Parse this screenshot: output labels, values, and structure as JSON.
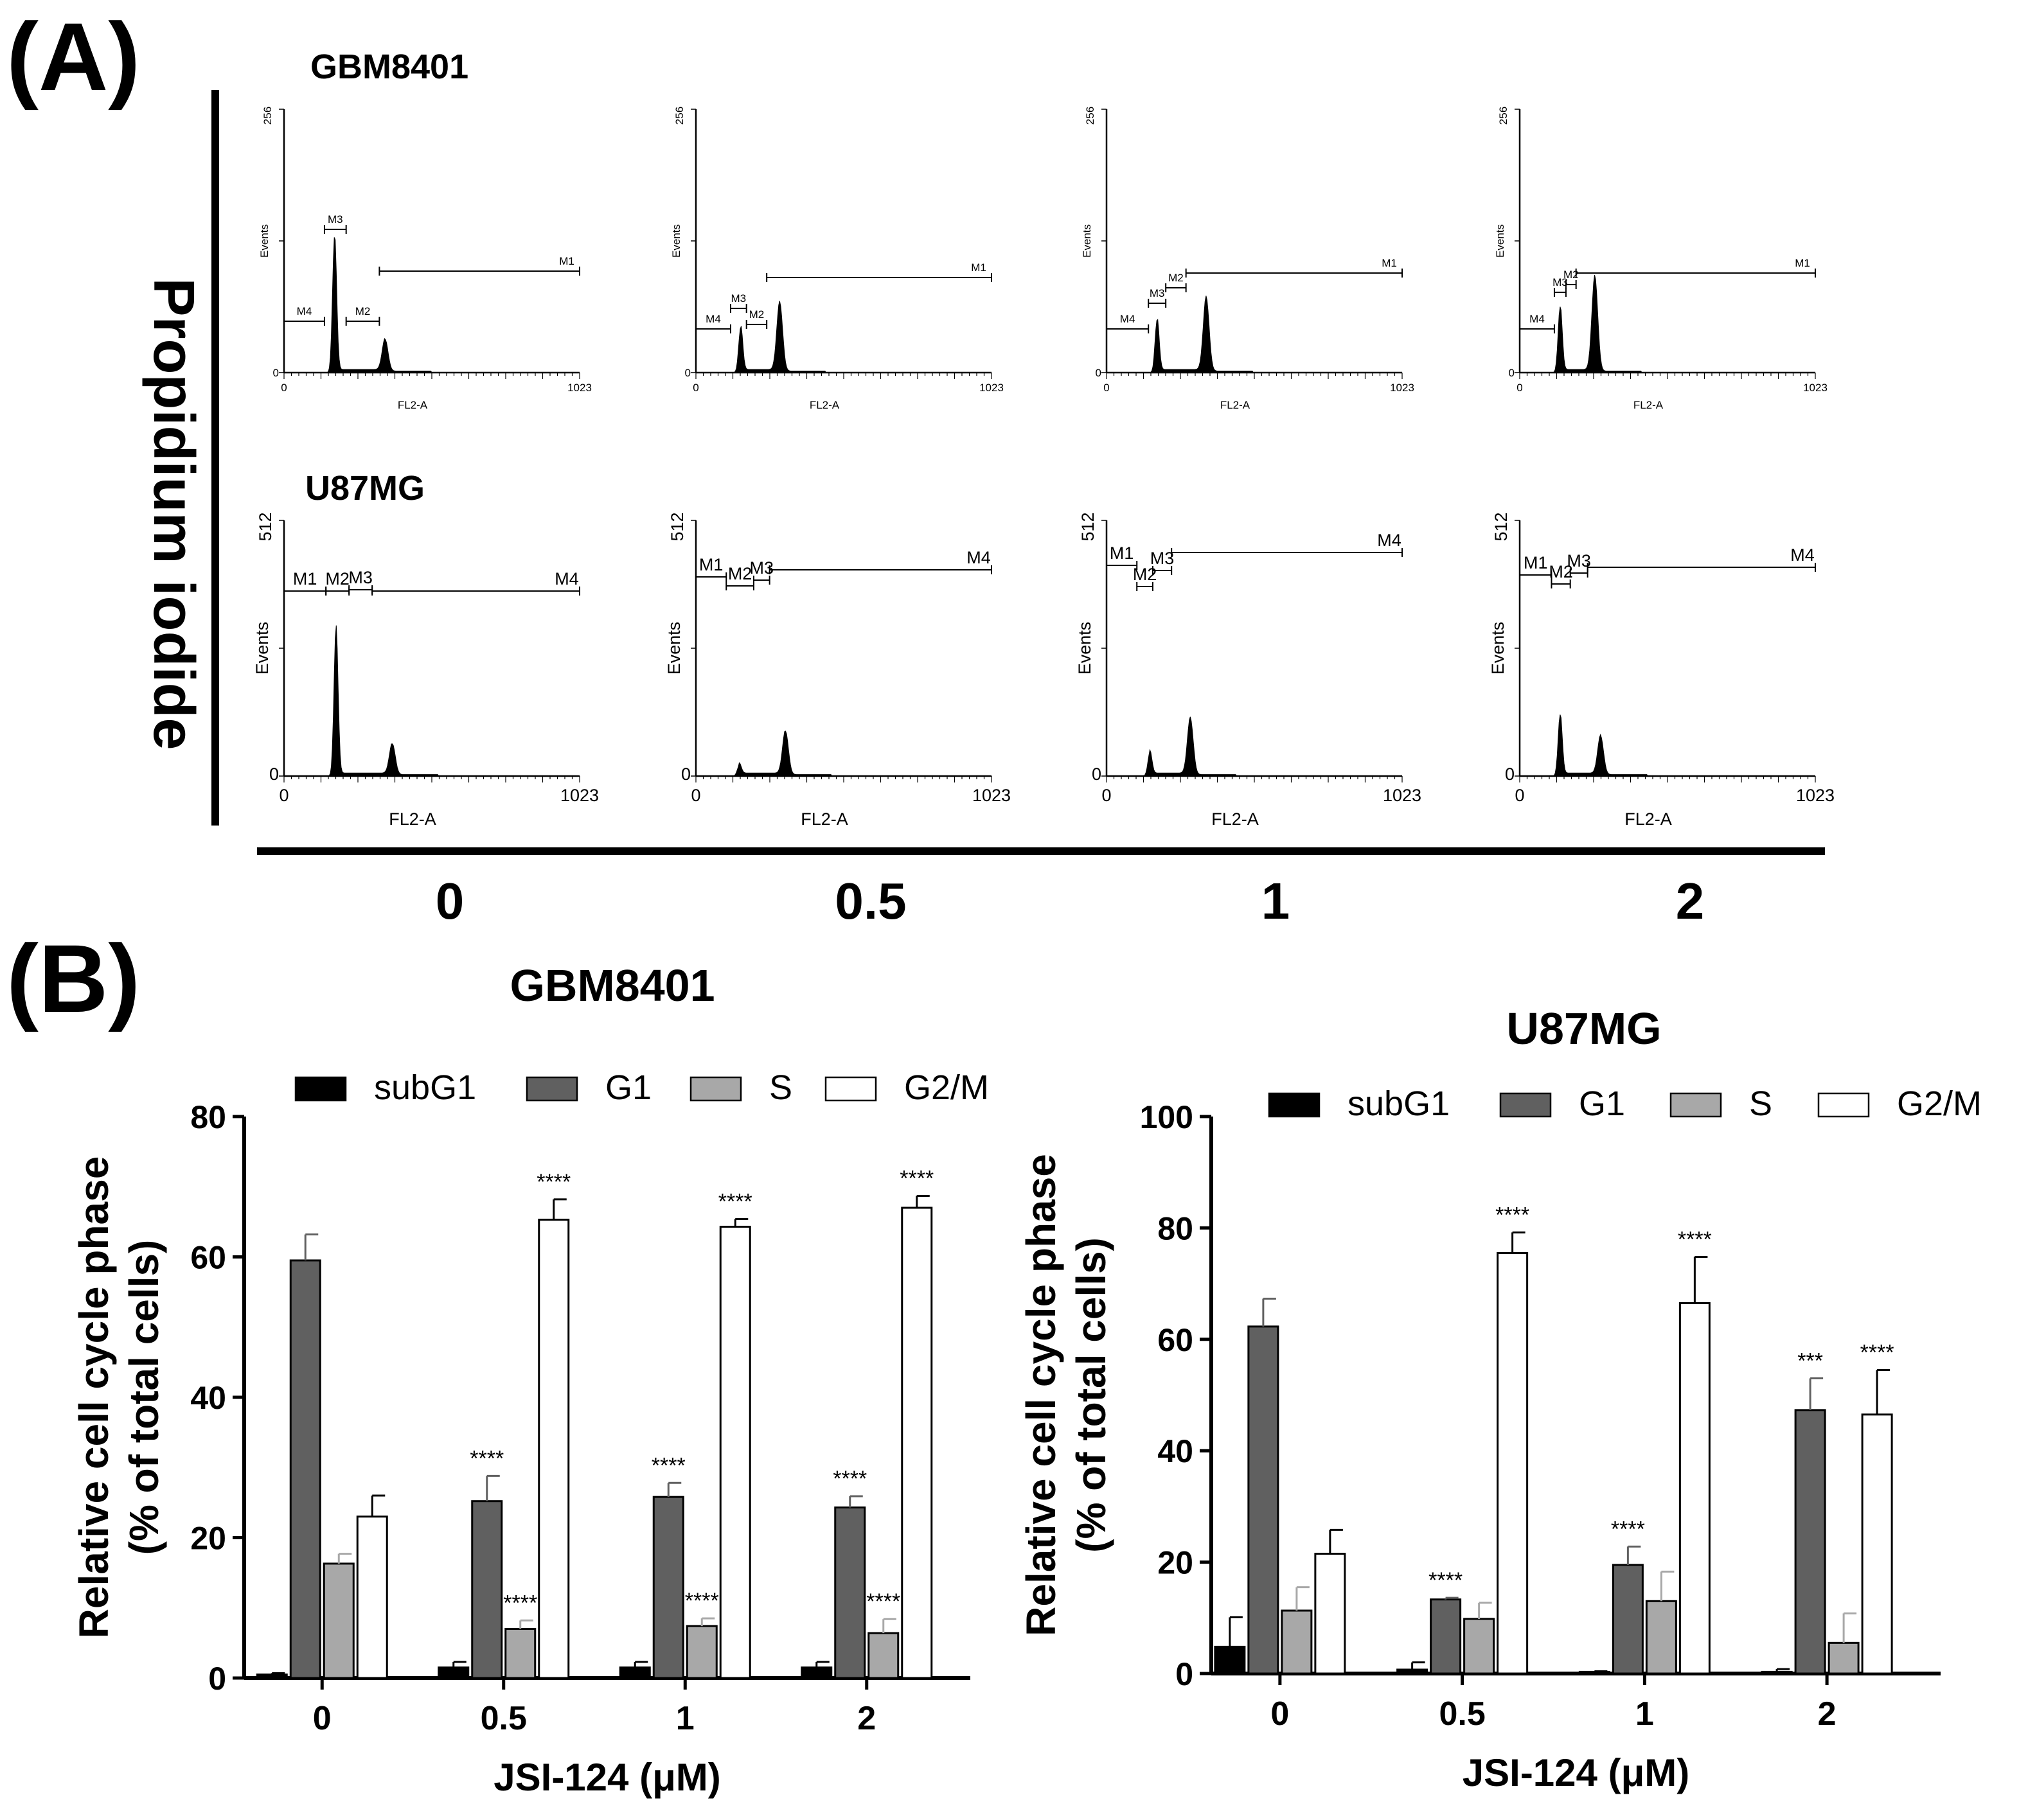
{
  "panel_a": {
    "label": "(A)",
    "y_title": "Propidium iodide",
    "rows": [
      {
        "cell_line": "GBM8401",
        "ymax_label": "256",
        "markers_order": [
          "M4",
          "M3",
          "M2",
          "M1"
        ],
        "histograms": [
          {
            "dose": "0",
            "peaks": [
              {
                "x": 175,
                "h": 0.52
              },
              {
                "x": 350,
                "h": 0.12
              }
            ],
            "markers": [
              {
                "name": "M4",
                "start": 0,
                "end": 140
              },
              {
                "name": "M3",
                "start": 140,
                "end": 215
              },
              {
                "name": "M2",
                "start": 215,
                "end": 330
              },
              {
                "name": "M1",
                "start": 330,
                "end": 1023
              }
            ]
          },
          {
            "dose": "0.5",
            "peaks": [
              {
                "x": 155,
                "h": 0.17
              },
              {
                "x": 290,
                "h": 0.26
              }
            ],
            "markers": [
              {
                "name": "M4",
                "start": 0,
                "end": 120
              },
              {
                "name": "M3",
                "start": 120,
                "end": 175
              },
              {
                "name": "M2",
                "start": 175,
                "end": 245
              },
              {
                "name": "M1",
                "start": 245,
                "end": 1023
              }
            ]
          },
          {
            "dose": "1",
            "peaks": [
              {
                "x": 175,
                "h": 0.2
              },
              {
                "x": 345,
                "h": 0.28
              }
            ],
            "markers": [
              {
                "name": "M4",
                "start": 0,
                "end": 145
              },
              {
                "name": "M3",
                "start": 145,
                "end": 205
              },
              {
                "name": "M2",
                "start": 205,
                "end": 275
              },
              {
                "name": "M1",
                "start": 275,
                "end": 1023
              }
            ]
          },
          {
            "dose": "2",
            "peaks": [
              {
                "x": 140,
                "h": 0.25
              },
              {
                "x": 260,
                "h": 0.36
              }
            ],
            "markers": [
              {
                "name": "M4",
                "start": 0,
                "end": 120
              },
              {
                "name": "M3",
                "start": 120,
                "end": 160
              },
              {
                "name": "M2",
                "start": 160,
                "end": 195
              },
              {
                "name": "M1",
                "start": 195,
                "end": 1023
              }
            ]
          }
        ]
      },
      {
        "cell_line": "U87MG",
        "ymax_label": "512",
        "markers_order": [
          "M1",
          "M2",
          "M3",
          "M4"
        ],
        "histograms": [
          {
            "dose": "0",
            "peaks": [
              {
                "x": 180,
                "h": 0.58
              },
              {
                "x": 375,
                "h": 0.12
              }
            ],
            "markers": [
              {
                "name": "M1",
                "start": 0,
                "end": 145
              },
              {
                "name": "M2",
                "start": 145,
                "end": 225
              },
              {
                "name": "M3",
                "start": 225,
                "end": 305
              },
              {
                "name": "M4",
                "start": 305,
                "end": 1023
              }
            ]
          },
          {
            "dose": "0.5",
            "peaks": [
              {
                "x": 150,
                "h": 0.04
              },
              {
                "x": 310,
                "h": 0.17
              }
            ],
            "markers": [
              {
                "name": "M1",
                "start": 0,
                "end": 105
              },
              {
                "name": "M2",
                "start": 105,
                "end": 200
              },
              {
                "name": "M3",
                "start": 200,
                "end": 255
              },
              {
                "name": "M4",
                "start": 255,
                "end": 1023
              }
            ]
          },
          {
            "dose": "1",
            "peaks": [
              {
                "x": 150,
                "h": 0.09
              },
              {
                "x": 290,
                "h": 0.22
              }
            ],
            "markers": [
              {
                "name": "M1",
                "start": 0,
                "end": 105
              },
              {
                "name": "M2",
                "start": 105,
                "end": 160
              },
              {
                "name": "M3",
                "start": 160,
                "end": 225
              },
              {
                "name": "M4",
                "start": 225,
                "end": 1023
              }
            ]
          },
          {
            "dose": "2",
            "peaks": [
              {
                "x": 140,
                "h": 0.24
              },
              {
                "x": 280,
                "h": 0.15
              }
            ],
            "markers": [
              {
                "name": "M1",
                "start": 0,
                "end": 110
              },
              {
                "name": "M2",
                "start": 110,
                "end": 175
              },
              {
                "name": "M3",
                "start": 175,
                "end": 235
              },
              {
                "name": "M4",
                "start": 235,
                "end": 1023
              }
            ]
          }
        ]
      }
    ],
    "hist_axis": {
      "xlabel": "FL2-A",
      "ylabel": "Events",
      "xmin_label": "0",
      "xmax_label": "1023",
      "ymin_label": "0"
    },
    "doses": [
      "0",
      "0.5",
      "1",
      "2"
    ]
  },
  "panel_b": {
    "label": "(B)"
  },
  "chart_data": [
    {
      "type": "bar",
      "title": "GBM8401",
      "xlabel": "JSI-124 (μM)",
      "ylabel": [
        "Relative cell cycle phase",
        "(% of total cells)"
      ],
      "categories": [
        "0",
        "0.5",
        "1",
        "2"
      ],
      "ylim": [
        0,
        80
      ],
      "yticks": [
        0,
        20,
        40,
        60,
        80
      ],
      "legend": "top",
      "series": [
        {
          "name": "subG1",
          "color": "#000000",
          "values": [
            0.5,
            1.5,
            1.5,
            1.5
          ],
          "errors": [
            0.2,
            0.8,
            0.8,
            0.8
          ],
          "significance": [
            "",
            "",
            "",
            ""
          ]
        },
        {
          "name": "G1",
          "color": "#606060",
          "values": [
            59.5,
            25.2,
            25.8,
            24.3
          ],
          "errors": [
            3.7,
            3.6,
            2.0,
            1.6
          ],
          "significance": [
            "",
            "****",
            "****",
            "****"
          ]
        },
        {
          "name": "S",
          "color": "#a8a8a8",
          "values": [
            16.3,
            7.0,
            7.4,
            6.4
          ],
          "errors": [
            1.4,
            1.2,
            1.1,
            2.0
          ],
          "significance": [
            "",
            "****",
            "****",
            "****"
          ]
        },
        {
          "name": "G2/M",
          "color": "#ffffff",
          "values": [
            23.0,
            65.3,
            64.3,
            67.0
          ],
          "errors": [
            3.0,
            2.9,
            1.1,
            1.7
          ],
          "significance": [
            "",
            "****",
            "****",
            "****"
          ]
        }
      ]
    },
    {
      "type": "bar",
      "title": "U87MG",
      "xlabel": "JSI-124 (μM)",
      "ylabel": [
        "Relative cell cycle phase",
        "(% of total cells)"
      ],
      "categories": [
        "0",
        "0.5",
        "1",
        "2"
      ],
      "ylim": [
        0,
        100
      ],
      "yticks": [
        0,
        20,
        40,
        60,
        80,
        100
      ],
      "legend": "top",
      "series": [
        {
          "name": "subG1",
          "color": "#000000",
          "values": [
            4.8,
            0.7,
            0.3,
            0.3
          ],
          "errors": [
            5.3,
            1.3,
            0.1,
            0.5
          ],
          "significance": [
            "",
            "",
            "",
            ""
          ]
        },
        {
          "name": "G1",
          "color": "#606060",
          "values": [
            62.3,
            13.3,
            19.5,
            47.3
          ],
          "errors": [
            5.0,
            0.3,
            3.3,
            5.7
          ],
          "significance": [
            "",
            "****",
            "****",
            "***"
          ]
        },
        {
          "name": "S",
          "color": "#a8a8a8",
          "values": [
            11.3,
            9.8,
            13.0,
            5.5
          ],
          "errors": [
            4.2,
            2.9,
            5.3,
            5.3
          ],
          "significance": [
            "",
            "",
            "",
            ""
          ]
        },
        {
          "name": "G2/M",
          "color": "#ffffff",
          "values": [
            21.5,
            75.5,
            66.5,
            46.5
          ],
          "errors": [
            4.3,
            3.7,
            8.3,
            8.0
          ],
          "significance": [
            "",
            "****",
            "****",
            "****"
          ]
        }
      ]
    }
  ]
}
